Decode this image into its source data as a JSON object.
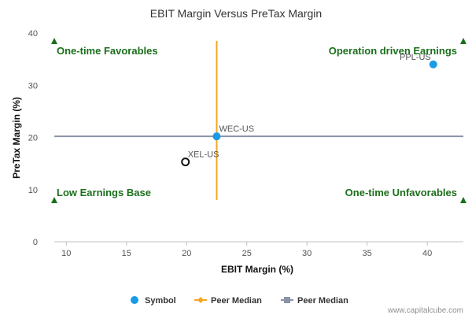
{
  "chart_data": {
    "type": "scatter",
    "title": "EBIT Margin Versus PreTax Margin",
    "xlabel": "EBIT Margin (%)",
    "ylabel": "PreTax Margin (%)",
    "xlim": [
      9,
      43
    ],
    "ylim": [
      0,
      40
    ],
    "x_ticks": [
      10,
      15,
      20,
      25,
      30,
      35,
      40
    ],
    "y_ticks": [
      0,
      10,
      20,
      30,
      40
    ],
    "grid": false,
    "legend_position": "bottom",
    "points": [
      {
        "label": "PPL-US",
        "x": 40.5,
        "y": 34.0,
        "style": "filled",
        "color": "#1a9be6"
      },
      {
        "label": "WEC-US",
        "x": 22.5,
        "y": 20.2,
        "style": "filled",
        "color": "#1a9be6"
      },
      {
        "label": "XEL-US",
        "x": 19.9,
        "y": 15.3,
        "style": "hollow",
        "color": "#111111"
      }
    ],
    "peer_median": {
      "x": 22.5,
      "y": 20.2,
      "x_line": {
        "name": "Peer Median",
        "y_range": [
          8,
          38.5
        ],
        "color": "#f5a623"
      },
      "y_line": {
        "name": "Peer Median",
        "color": "#8a93a5"
      }
    },
    "quadrants": [
      {
        "label": "One-time Favorables",
        "position": "top-left",
        "color": "#1b6f1b"
      },
      {
        "label": "Operation driven Earnings",
        "position": "top-right",
        "color": "#1b6f1b"
      },
      {
        "label": "Low Earnings Base",
        "position": "bottom-left",
        "color": "#1b6f1b"
      },
      {
        "label": "One-time Unfavorables",
        "position": "bottom-right",
        "color": "#1b6f1b"
      }
    ],
    "corner_markers": [
      {
        "x": 9,
        "y": 38.5
      },
      {
        "x": 43,
        "y": 38.5
      },
      {
        "x": 9,
        "y": 8
      },
      {
        "x": 43,
        "y": 8
      }
    ],
    "legend": [
      {
        "label": "Symbol",
        "kind": "dot",
        "color": "#1a9be6"
      },
      {
        "label": "Peer Median",
        "kind": "line-diamond",
        "color": "#f5a623"
      },
      {
        "label": "Peer Median",
        "kind": "line-square",
        "color": "#8a93a5"
      }
    ]
  },
  "footer": {
    "credit": "www.capitalcube.com"
  }
}
